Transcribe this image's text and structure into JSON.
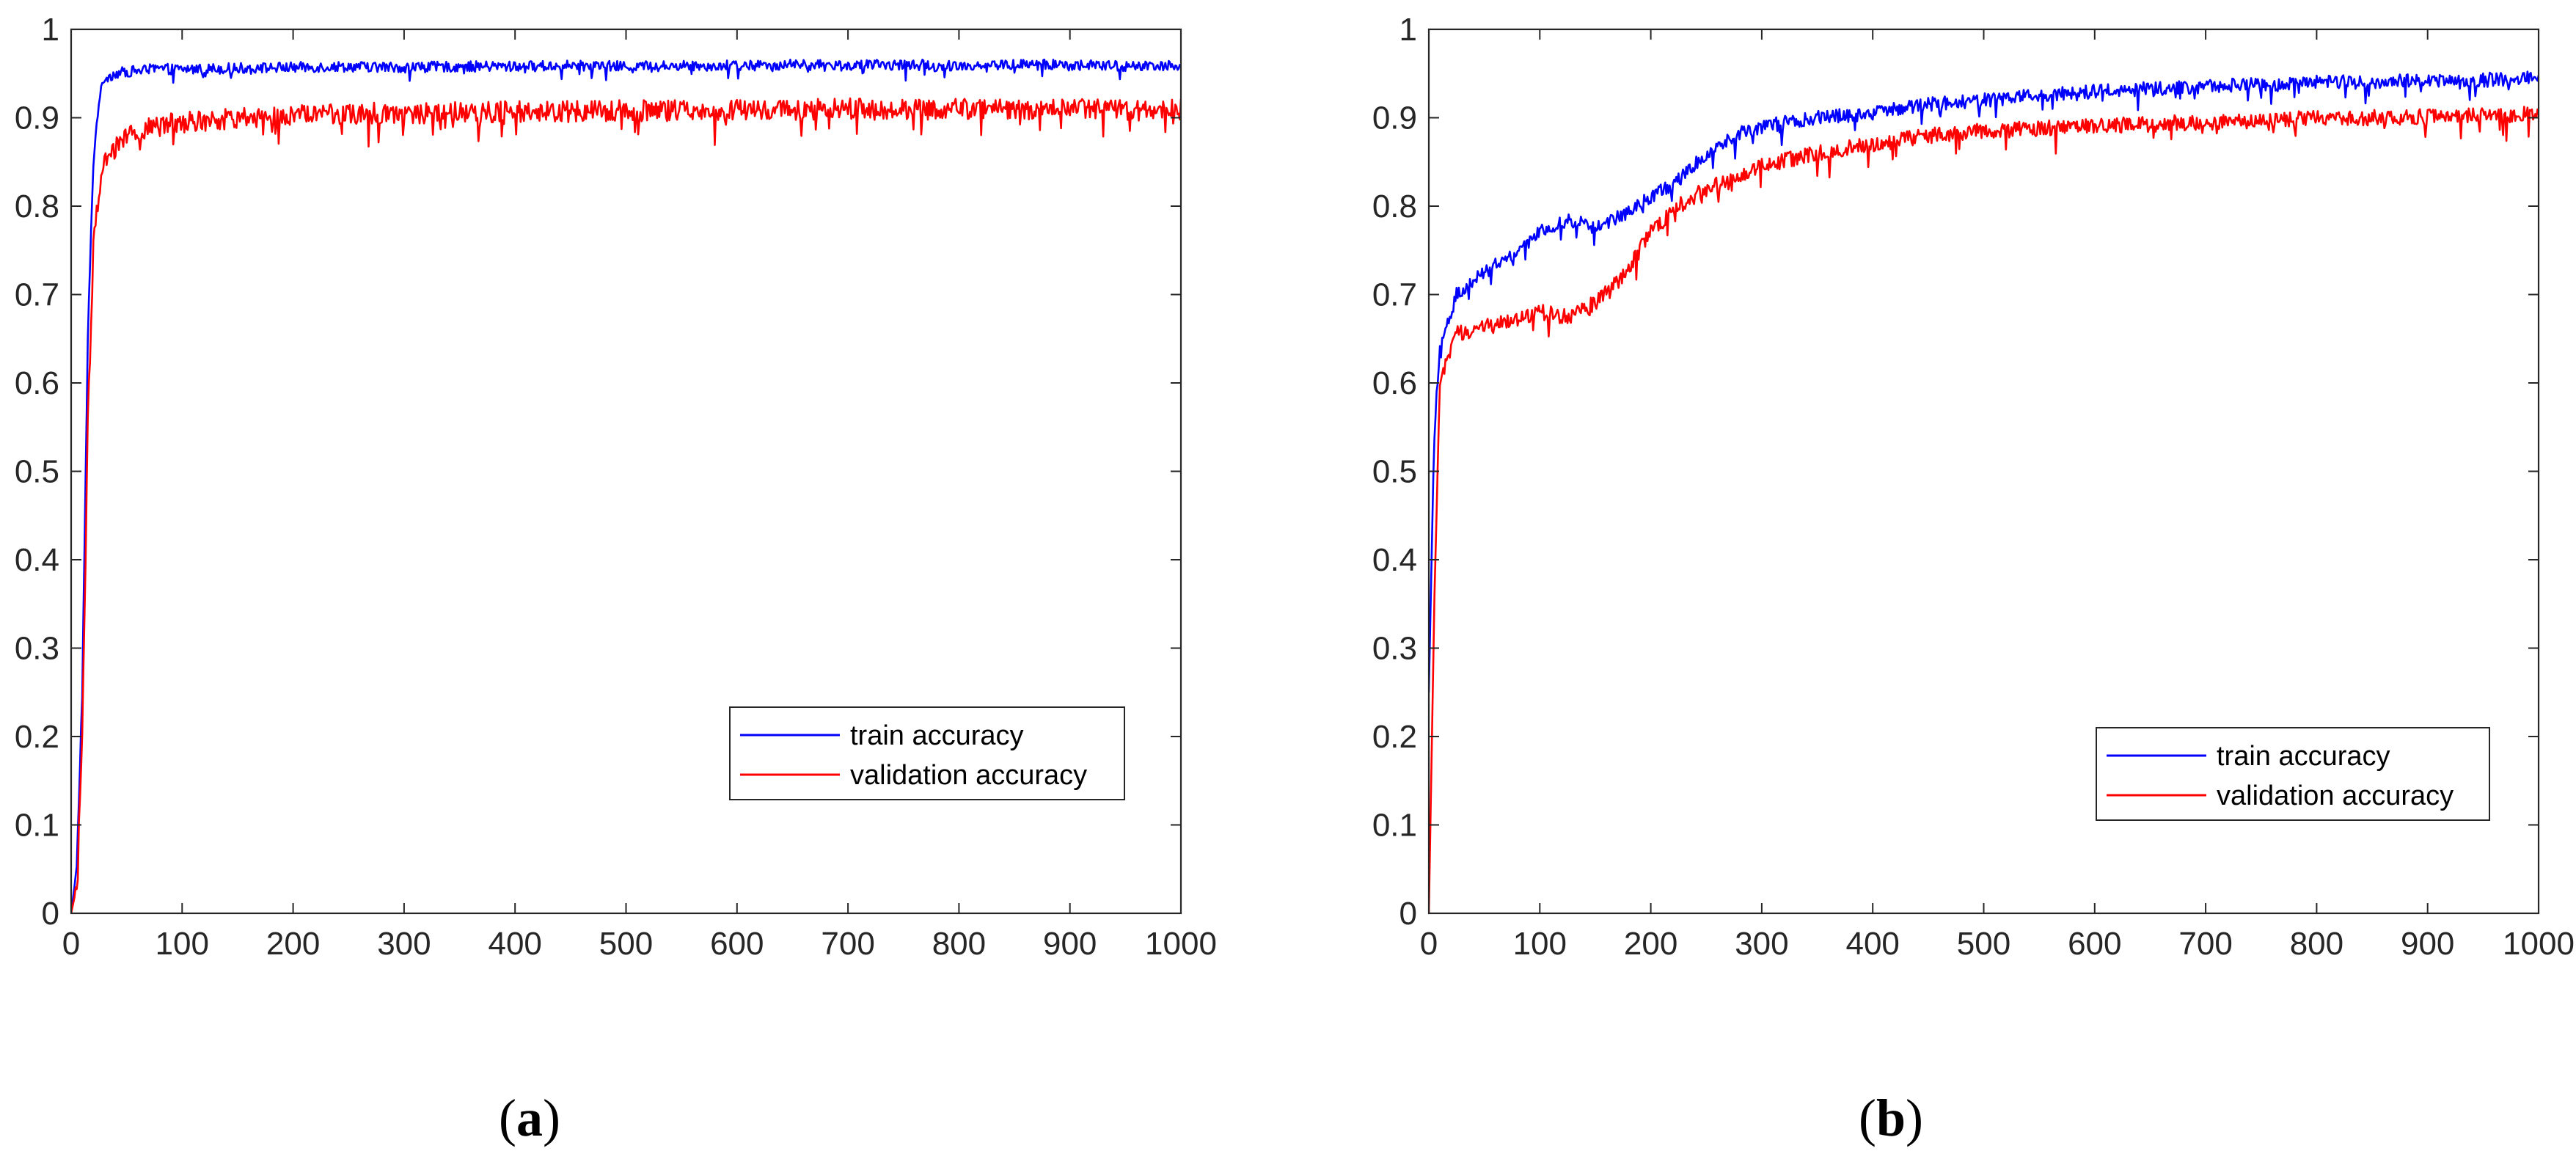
{
  "colors": {
    "train": "#0000ff",
    "validation": "#ff0000",
    "axes": "#262626",
    "background": "#ffffff"
  },
  "chart_data": [
    {
      "type": "line",
      "panel": "a",
      "caption": {
        "open": "(",
        "letter": "a",
        "close": ")"
      },
      "title": "",
      "xlabel": "",
      "ylabel": "",
      "xlim": [
        0,
        1000
      ],
      "ylim": [
        0,
        1
      ],
      "grid": false,
      "legend_position": "lower-right",
      "x_ticks": [
        0,
        100,
        200,
        300,
        400,
        500,
        600,
        700,
        800,
        900,
        1000
      ],
      "x_tick_labels": [
        "0",
        "100",
        "200",
        "300",
        "400",
        "500",
        "600",
        "700",
        "800",
        "900",
        "1000"
      ],
      "y_ticks": [
        0,
        0.1,
        0.2,
        0.3,
        0.4,
        0.5,
        0.6,
        0.7,
        0.8,
        0.9,
        1
      ],
      "y_tick_labels": [
        "0",
        "0.1",
        "0.2",
        "0.3",
        "0.4",
        "0.5",
        "0.6",
        "0.7",
        "0.8",
        "0.9",
        "1"
      ],
      "series": [
        {
          "name": "train accuracy",
          "color_key": "train",
          "x": [
            0,
            5,
            10,
            15,
            20,
            25,
            30,
            40,
            50,
            75,
            100,
            150,
            200,
            250,
            300,
            350,
            400,
            450,
            500,
            550,
            600,
            650,
            700,
            750,
            800,
            850,
            900,
            950,
            1000
          ],
          "y": [
            0.0,
            0.05,
            0.25,
            0.65,
            0.85,
            0.92,
            0.945,
            0.95,
            0.952,
            0.955,
            0.955,
            0.956,
            0.957,
            0.958,
            0.957,
            0.958,
            0.958,
            0.959,
            0.958,
            0.959,
            0.959,
            0.96,
            0.959,
            0.96,
            0.959,
            0.96,
            0.96,
            0.958,
            0.96
          ]
        },
        {
          "name": "validation accuracy",
          "color_key": "validation",
          "x": [
            0,
            5,
            10,
            15,
            20,
            25,
            30,
            40,
            50,
            75,
            100,
            150,
            200,
            250,
            300,
            350,
            400,
            450,
            500,
            550,
            600,
            650,
            700,
            750,
            800,
            850,
            900,
            950,
            1000
          ],
          "y": [
            0.0,
            0.03,
            0.2,
            0.55,
            0.75,
            0.82,
            0.85,
            0.865,
            0.88,
            0.89,
            0.895,
            0.9,
            0.903,
            0.905,
            0.905,
            0.906,
            0.907,
            0.907,
            0.908,
            0.908,
            0.909,
            0.909,
            0.91,
            0.909,
            0.91,
            0.91,
            0.91,
            0.908,
            0.91
          ]
        }
      ]
    },
    {
      "type": "line",
      "panel": "b",
      "caption": {
        "open": "(",
        "letter": "b",
        "close": ")"
      },
      "title": "",
      "xlabel": "",
      "ylabel": "",
      "xlim": [
        0,
        1000
      ],
      "ylim": [
        0,
        1
      ],
      "grid": false,
      "legend_position": "lower-right",
      "x_ticks": [
        0,
        100,
        200,
        300,
        400,
        500,
        600,
        700,
        800,
        900,
        1000
      ],
      "x_tick_labels": [
        "0",
        "100",
        "200",
        "300",
        "400",
        "500",
        "600",
        "700",
        "800",
        "900",
        "1000"
      ],
      "y_ticks": [
        0,
        0.1,
        0.2,
        0.3,
        0.4,
        0.5,
        0.6,
        0.7,
        0.8,
        0.9,
        1
      ],
      "y_tick_labels": [
        "0",
        "0.1",
        "0.2",
        "0.3",
        "0.4",
        "0.5",
        "0.6",
        "0.7",
        "0.8",
        "0.9",
        "1"
      ],
      "series": [
        {
          "name": "train accuracy",
          "color_key": "train",
          "x": [
            0,
            5,
            10,
            15,
            25,
            50,
            75,
            100,
            125,
            150,
            175,
            200,
            225,
            250,
            275,
            300,
            350,
            400,
            450,
            500,
            550,
            600,
            650,
            700,
            750,
            800,
            850,
            900,
            950,
            1000
          ],
          "y": [
            0.25,
            0.55,
            0.64,
            0.66,
            0.7,
            0.725,
            0.745,
            0.77,
            0.785,
            0.775,
            0.79,
            0.81,
            0.83,
            0.86,
            0.88,
            0.89,
            0.9,
            0.905,
            0.915,
            0.92,
            0.925,
            0.93,
            0.933,
            0.935,
            0.938,
            0.94,
            0.941,
            0.942,
            0.943,
            0.945
          ]
        },
        {
          "name": "validation accuracy",
          "color_key": "validation",
          "x": [
            0,
            5,
            10,
            15,
            25,
            50,
            75,
            100,
            125,
            150,
            175,
            200,
            225,
            250,
            275,
            300,
            350,
            400,
            450,
            500,
            550,
            600,
            650,
            700,
            750,
            800,
            850,
            900,
            950,
            1000
          ],
          "y": [
            0.0,
            0.35,
            0.6,
            0.62,
            0.655,
            0.665,
            0.67,
            0.68,
            0.675,
            0.69,
            0.72,
            0.77,
            0.8,
            0.82,
            0.83,
            0.845,
            0.86,
            0.87,
            0.88,
            0.885,
            0.888,
            0.89,
            0.893,
            0.895,
            0.897,
            0.9,
            0.9,
            0.901,
            0.902,
            0.905
          ]
        }
      ]
    }
  ]
}
